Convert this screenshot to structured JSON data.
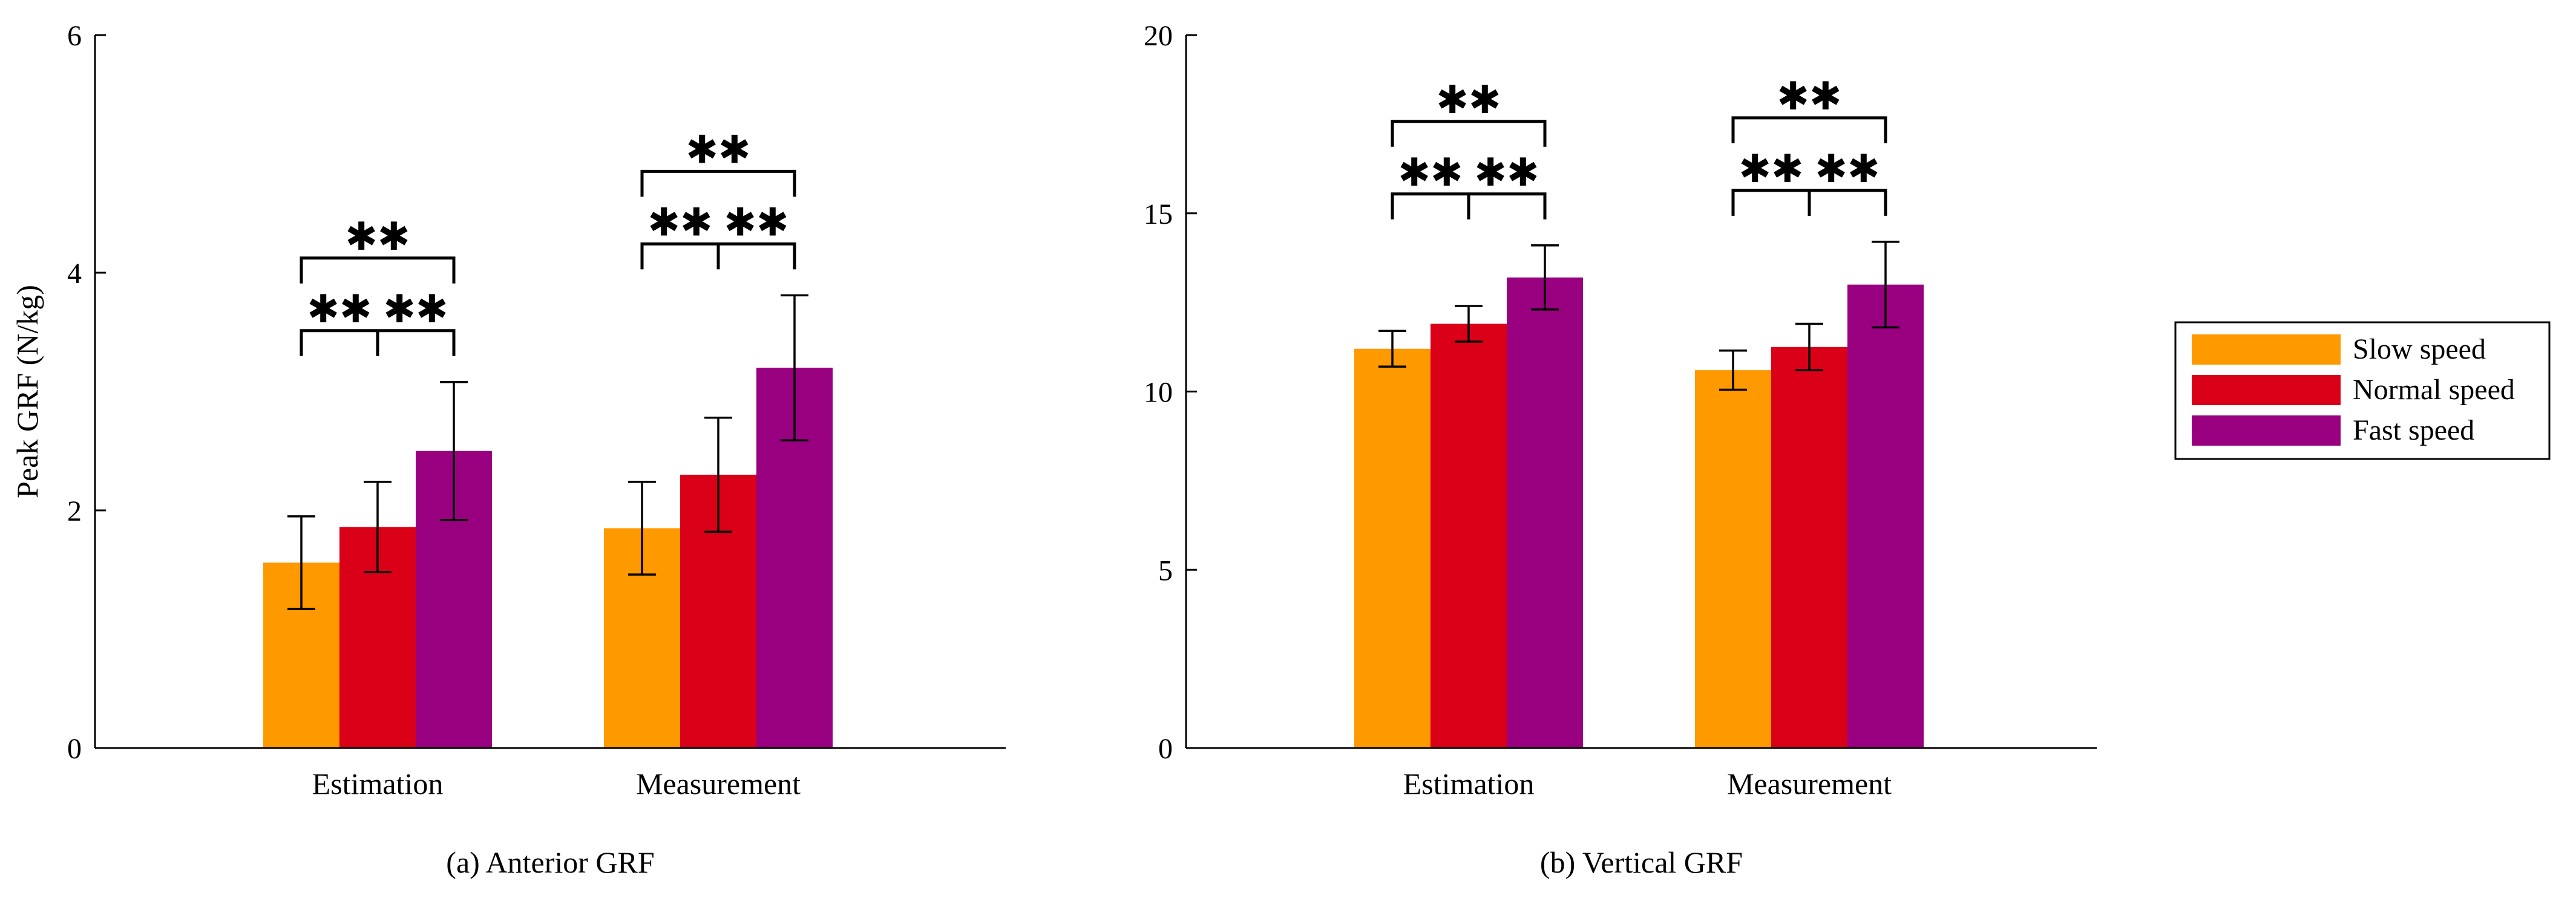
{
  "legend": {
    "placement": "right",
    "entries": [
      {
        "label": "Slow speed",
        "color": "#FF9900"
      },
      {
        "label": "Normal speed",
        "color": "#D90018"
      },
      {
        "label": "Fast speed",
        "color": "#990080"
      }
    ]
  },
  "significance_mark": "✱✱",
  "chart_data": [
    {
      "type": "bar",
      "caption": "(a) Anterior GRF",
      "ylabel": "Peak GRF (N/kg)",
      "ylim": [
        0,
        6
      ],
      "yticks": [
        0,
        2,
        4,
        6
      ],
      "categories": [
        "Estimation",
        "Measurement"
      ],
      "series": [
        {
          "name": "Slow speed",
          "values": [
            1.56,
            1.85
          ],
          "errors": [
            0.39,
            0.39
          ]
        },
        {
          "name": "Normal speed",
          "values": [
            1.86,
            2.3
          ],
          "errors": [
            0.38,
            0.48
          ]
        },
        {
          "name": "Fast speed",
          "values": [
            2.5,
            3.2
          ],
          "errors": [
            0.58,
            0.61
          ]
        }
      ],
      "significance": [
        {
          "category": 0,
          "pairs": [
            [
              0,
              1
            ],
            [
              1,
              2
            ],
            [
              0,
              2
            ]
          ],
          "label": "**"
        },
        {
          "category": 1,
          "pairs": [
            [
              0,
              1
            ],
            [
              1,
              2
            ],
            [
              0,
              2
            ]
          ],
          "label": "**"
        }
      ]
    },
    {
      "type": "bar",
      "caption": "(b) Vertical GRF",
      "ylabel": "",
      "ylim": [
        0,
        20
      ],
      "yticks": [
        0,
        5,
        10,
        15,
        20
      ],
      "categories": [
        "Estimation",
        "Measurement"
      ],
      "series": [
        {
          "name": "Slow speed",
          "values": [
            11.2,
            10.6
          ],
          "errors": [
            0.5,
            0.55
          ]
        },
        {
          "name": "Normal speed",
          "values": [
            11.9,
            11.25
          ],
          "errors": [
            0.5,
            0.65
          ]
        },
        {
          "name": "Fast speed",
          "values": [
            13.2,
            13.0
          ],
          "errors": [
            0.9,
            1.2
          ]
        }
      ],
      "significance": [
        {
          "category": 0,
          "pairs": [
            [
              0,
              1
            ],
            [
              1,
              2
            ],
            [
              0,
              2
            ]
          ],
          "label": "**"
        },
        {
          "category": 1,
          "pairs": [
            [
              0,
              1
            ],
            [
              1,
              2
            ],
            [
              0,
              2
            ]
          ],
          "label": "**"
        }
      ]
    }
  ]
}
